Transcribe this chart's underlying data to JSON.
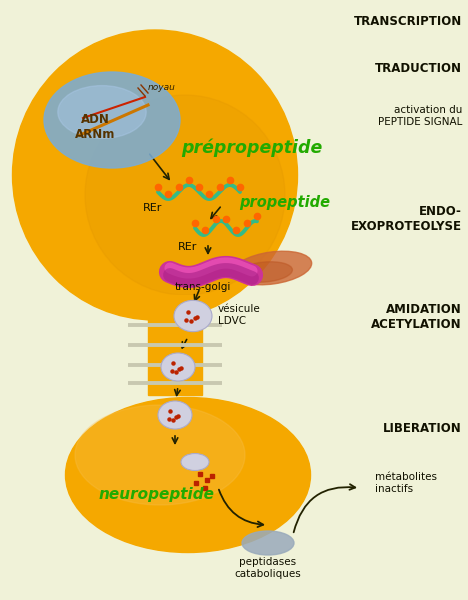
{
  "bg_color": "#f0f2d8",
  "neuron_color": "#f5a800",
  "neuron_color_dark": "#e09500",
  "nucleus_fill": "#7bacd4",
  "nucleus_highlight": "#aac8e8",
  "golgi_magenta": "#cc3399",
  "golgi_pink": "#ee55bb",
  "golgi_brown": "#cc6633",
  "rer_green": "#33bb88",
  "rer_dot": "#ff6600",
  "vesicle_fill": "#d0d0e0",
  "vesicle_border": "#aaaacc",
  "red_dot": "#bb2200",
  "green_text": "#22aa00",
  "dark_text": "#111100",
  "brown_text": "#443300",
  "arrow_color": "#222200",
  "myelin_color": "#c8c8b0",
  "pep_fill": "#99aabb",
  "label_transcription": "TRANSCRIPTION",
  "label_traduction": "TRADUCTION",
  "label_activation": "activation du\nPEPTIDE SIGNAL",
  "label_endo": "ENDO-\nEXOPROTEOLYSE",
  "label_amidation": "AMIDATION\nACETYLATION",
  "label_liberation": "LIBERATION",
  "label_neuropeptide": "neuropeptide",
  "label_metabolites": "métabolites\ninactifs",
  "label_peptidases": "peptidases\ncataboliques",
  "label_noyau": "noyau",
  "label_adn": "ADN\nARNm",
  "label_rer1": "REr",
  "label_rer2": "REr",
  "label_transgolgi": "trans-golgi",
  "label_vesicule": "vésicule\nLDVC",
  "label_prepropeptide": "prépropeptide",
  "label_propeptide": "propeptide"
}
